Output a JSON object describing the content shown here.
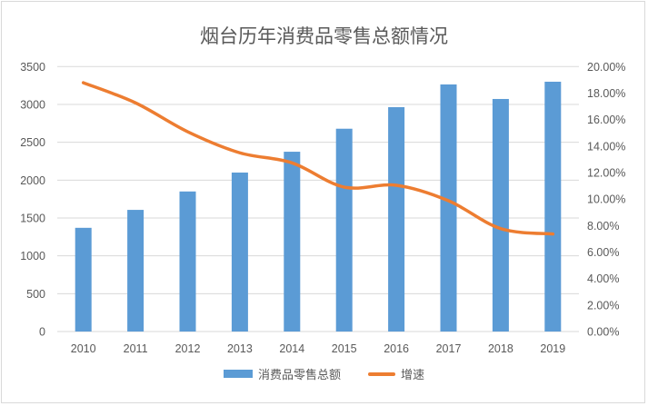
{
  "chart_data": {
    "type": "bar+line",
    "title": "烟台历年消费品零售总额情况",
    "categories": [
      "2010",
      "2011",
      "2012",
      "2013",
      "2014",
      "2015",
      "2016",
      "2017",
      "2018",
      "2019"
    ],
    "series": [
      {
        "name": "消费品零售总额",
        "type": "bar",
        "axis": "left",
        "color": "#5b9bd5",
        "values": [
          1370,
          1607,
          1850,
          2100,
          2375,
          2679,
          2964,
          3264,
          3072,
          3300
        ]
      },
      {
        "name": "增速",
        "type": "line",
        "axis": "right",
        "color": "#ed7d31",
        "values": [
          18.78,
          17.26,
          15.08,
          13.49,
          12.73,
          10.9,
          11.04,
          9.87,
          7.77,
          7.36
        ]
      }
    ],
    "y_left": {
      "range": [
        0,
        3500
      ],
      "ticks": [
        "0",
        "500",
        "1000",
        "1500",
        "2000",
        "2500",
        "3000",
        "3500"
      ]
    },
    "y_right": {
      "range": [
        0,
        20
      ],
      "unit": "%",
      "ticks": [
        "0.00%",
        "2.00%",
        "4.00%",
        "6.00%",
        "8.00%",
        "10.00%",
        "12.00%",
        "14.00%",
        "16.00%",
        "18.00%",
        "20.00%"
      ]
    },
    "grid": true,
    "legend": "bottom"
  }
}
